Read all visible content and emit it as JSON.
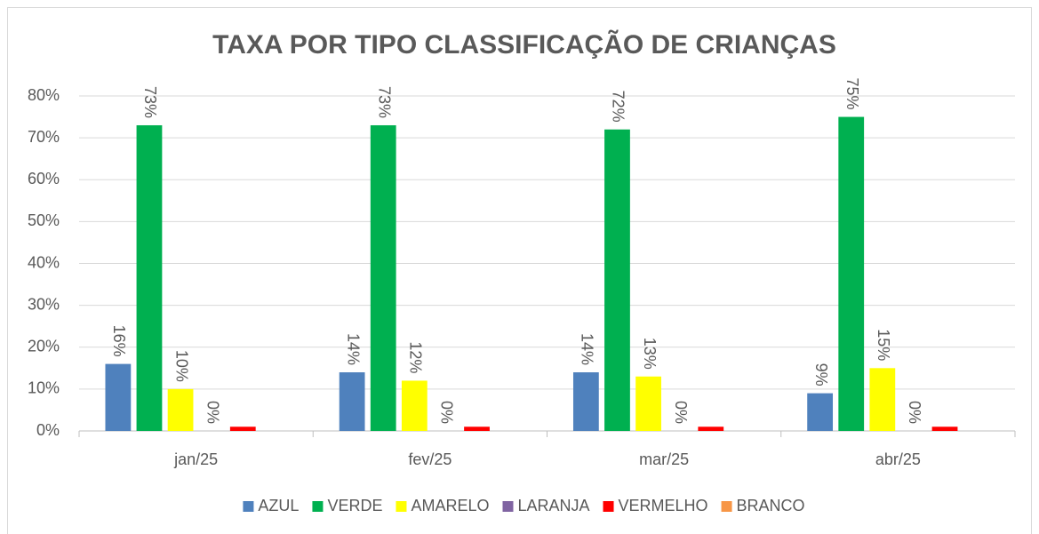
{
  "chart_data": {
    "type": "bar",
    "title": "TAXA POR TIPO CLASSIFICAÇÃO DE  CRIANÇAS",
    "categories": [
      "jan/25",
      "fev/25",
      "mar/25",
      "abr/25"
    ],
    "series": [
      {
        "name": "AZUL",
        "color": "#4f81bd",
        "values": [
          16,
          14,
          14,
          9
        ],
        "value_labels": [
          "16%",
          "14%",
          "14%",
          "9%"
        ]
      },
      {
        "name": "VERDE",
        "color": "#00b050",
        "values": [
          73,
          73,
          72,
          75
        ],
        "value_labels": [
          "73%",
          "73%",
          "72%",
          "75%"
        ]
      },
      {
        "name": "AMARELO",
        "color": "#ffff00",
        "values": [
          10,
          12,
          13,
          15
        ],
        "value_labels": [
          "10%",
          "12%",
          "13%",
          "15%"
        ]
      },
      {
        "name": "LARANJA",
        "color": "#8064a2",
        "values": [
          0,
          0,
          0,
          0
        ],
        "value_labels": [
          "0%",
          "0%",
          "0%",
          "0%"
        ]
      },
      {
        "name": "VERMELHO",
        "color": "#ff0000",
        "values": [
          1,
          1,
          1,
          1
        ]
      },
      {
        "name": "BRANCO",
        "color": "#f79646",
        "values": [
          0,
          0,
          0,
          0
        ]
      }
    ],
    "ylim": [
      0,
      80
    ],
    "yticks": [
      {
        "value": 0,
        "label": "0%"
      },
      {
        "value": 10,
        "label": "10%"
      },
      {
        "value": 20,
        "label": "20%"
      },
      {
        "value": 30,
        "label": "30%"
      },
      {
        "value": 40,
        "label": "40%"
      },
      {
        "value": 50,
        "label": "50%"
      },
      {
        "value": 60,
        "label": "60%"
      },
      {
        "value": 70,
        "label": "70%"
      },
      {
        "value": 80,
        "label": "80%"
      }
    ],
    "grid": true,
    "legend": "bottom"
  }
}
